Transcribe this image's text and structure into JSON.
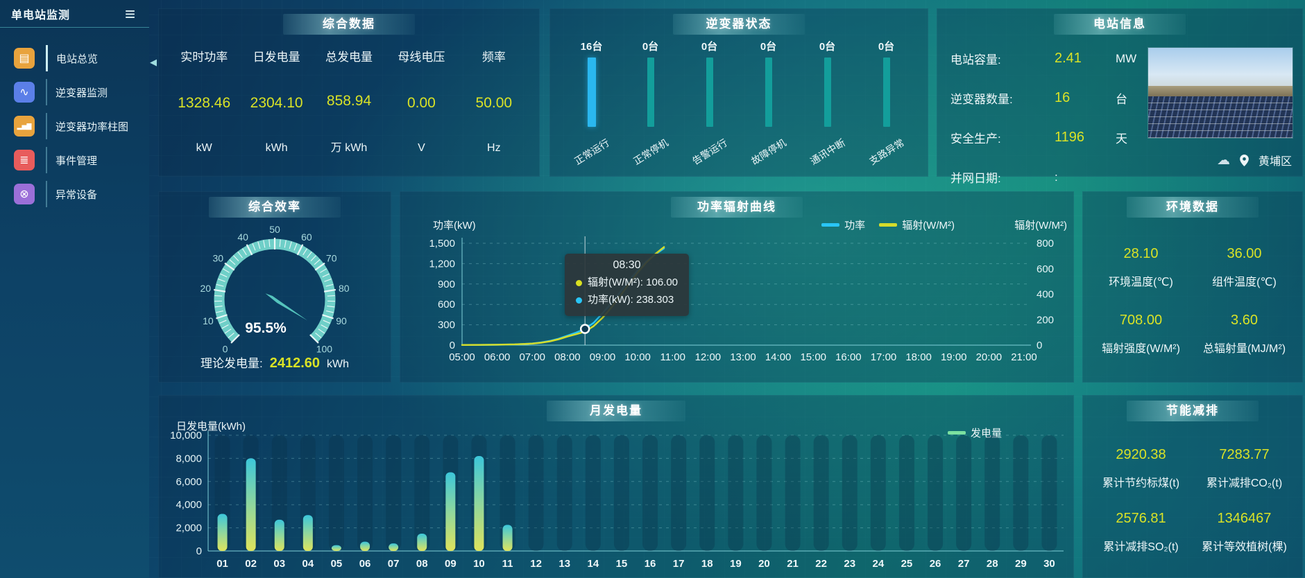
{
  "app": {
    "title": "单电站监测"
  },
  "theme": {
    "value_color": "#d9e226",
    "power_line_color": "#29c5f6",
    "radiation_line_color": "#d4dc2b",
    "inverter_bar_highlight": "#2ab7ef",
    "inverter_bar_normal": "#139e9b",
    "gauge_color": "#6fcfc8"
  },
  "sidebar": {
    "items": [
      {
        "label": "电站总览",
        "color": "#e8a33d",
        "active": true
      },
      {
        "label": "逆变器监测",
        "color": "#5b7fe8",
        "active": false
      },
      {
        "label": "逆变器功率柱图",
        "color": "#e8a33d",
        "active": false
      },
      {
        "label": "事件管理",
        "color": "#e85c5c",
        "active": false
      },
      {
        "label": "异常设备",
        "color": "#9b6fd8",
        "active": false
      }
    ]
  },
  "summary": {
    "title": "综合数据",
    "metrics": [
      {
        "label": "实时功率",
        "value": "1328.46",
        "unit": "kW"
      },
      {
        "label": "日发电量",
        "value": "2304.10",
        "unit": "kWh"
      },
      {
        "label": "总发电量",
        "value": "858.94",
        "unit": "万 kWh"
      },
      {
        "label": "母线电压",
        "value": "0.00",
        "unit": "V"
      },
      {
        "label": "频率",
        "value": "50.00",
        "unit": "Hz"
      }
    ]
  },
  "inverter": {
    "title": "逆变器状态",
    "bars": [
      {
        "count": "16台",
        "label": "正常运行",
        "color": "#2ab7ef",
        "highlight": true
      },
      {
        "count": "0台",
        "label": "正常停机",
        "color": "#139e9b",
        "highlight": false
      },
      {
        "count": "0台",
        "label": "告警运行",
        "color": "#139e9b",
        "highlight": false
      },
      {
        "count": "0台",
        "label": "故障停机",
        "color": "#139e9b",
        "highlight": false
      },
      {
        "count": "0台",
        "label": "通讯中断",
        "color": "#139e9b",
        "highlight": false
      },
      {
        "count": "0台",
        "label": "支路异常",
        "color": "#139e9b",
        "highlight": false
      }
    ]
  },
  "station": {
    "title": "电站信息",
    "rows": [
      {
        "label": "电站容量:",
        "value": "2.41",
        "unit": "MW"
      },
      {
        "label": "逆变器数量:",
        "value": "16",
        "unit": "台"
      },
      {
        "label": "安全生产:",
        "value": "1196",
        "unit": "天"
      },
      {
        "label": "并网日期: ",
        "value": ":",
        "unit": ""
      }
    ],
    "location": "黄埔区"
  },
  "efficiency": {
    "title": "综合效率",
    "value_label": "95.5%",
    "bottom": {
      "label": "理论发电量:",
      "value": "2412.60",
      "unit": "kWh"
    }
  },
  "environment": {
    "title": "环境数据",
    "items": [
      {
        "value": "28.10",
        "label": "环境温度(℃)"
      },
      {
        "value": "36.00",
        "label": "组件温度(℃)"
      },
      {
        "value": "708.00",
        "label": "辐射强度(W/M²)"
      },
      {
        "value": "3.60",
        "label": "总辐射量(MJ/M²)"
      }
    ]
  },
  "saving": {
    "title": "节能减排",
    "items": [
      {
        "value": "2920.38",
        "label": "累计节约标煤(t)"
      },
      {
        "value": "7283.77",
        "label": "累计减排CO₂(t)"
      },
      {
        "value": "2576.81",
        "label": "累计减排SO₂(t)"
      },
      {
        "value": "1346467",
        "label": "累计等效植树(棵)"
      }
    ]
  },
  "chart_data": [
    {
      "id": "power_radiation_curve",
      "type": "line",
      "title": "功率辐射曲线",
      "ylabel_left": "功率(kW)",
      "ylabel_right": "辐射(W/M²)",
      "ylim_left": [
        0,
        1500
      ],
      "ylim_right": [
        0,
        800
      ],
      "yticks_left": [
        "0",
        "300",
        "600",
        "900",
        "1,200",
        "1,500"
      ],
      "yticks_right": [
        "0",
        "200",
        "400",
        "600",
        "800"
      ],
      "xticks": [
        "05:00",
        "06:00",
        "07:00",
        "08:00",
        "09:00",
        "10:00",
        "11:00",
        "12:00",
        "13:00",
        "14:00",
        "15:00",
        "16:00",
        "17:00",
        "18:00",
        "19:00",
        "20:00",
        "21:00"
      ],
      "x_range_hours": [
        5,
        21
      ],
      "grid": "dashed",
      "legend_position": "top-right",
      "series": [
        {
          "name": "功率",
          "axis": "left",
          "color": "#29c5f6",
          "points": [
            [
              5,
              2
            ],
            [
              5.5,
              3
            ],
            [
              6,
              5
            ],
            [
              6.5,
              10
            ],
            [
              7,
              25
            ],
            [
              7.25,
              40
            ],
            [
              7.5,
              62
            ],
            [
              7.75,
              95
            ],
            [
              8,
              140
            ],
            [
              8.25,
              185
            ],
            [
              8.5,
              238.3
            ],
            [
              8.75,
              330
            ],
            [
              9,
              470
            ],
            [
              9.25,
              620
            ],
            [
              9.5,
              780
            ],
            [
              9.75,
              950
            ],
            [
              10,
              1100
            ],
            [
              10.25,
              1235
            ],
            [
              10.5,
              1335
            ],
            [
              10.75,
              1425
            ]
          ]
        },
        {
          "name": "辐射(W/M²)",
          "axis": "right",
          "color": "#d4dc2b",
          "points": [
            [
              5,
              1
            ],
            [
              5.5,
              2
            ],
            [
              6,
              3
            ],
            [
              6.5,
              6
            ],
            [
              7,
              12
            ],
            [
              7.25,
              19
            ],
            [
              7.5,
              30
            ],
            [
              7.75,
              46
            ],
            [
              8,
              68
            ],
            [
              8.25,
              86
            ],
            [
              8.5,
              106
            ],
            [
              8.75,
              150
            ],
            [
              9,
              215
            ],
            [
              9.25,
              295
            ],
            [
              9.5,
              385
            ],
            [
              9.75,
              480
            ],
            [
              10,
              570
            ],
            [
              10.25,
              650
            ],
            [
              10.5,
              715
            ],
            [
              10.75,
              770
            ]
          ]
        }
      ],
      "tooltip": {
        "time": "08:30",
        "rows": [
          {
            "dot": "#d9e021",
            "text": "辐射(W/M²): 106.00"
          },
          {
            "dot": "#29c5f6",
            "text": "功率(kW): 238.303"
          }
        ],
        "marker_x_hour": 8.5,
        "marker_power": 238.303
      }
    },
    {
      "id": "monthly_generation",
      "type": "bar",
      "title": "月发电量",
      "ylabel": "日发电量(kWh)",
      "ylim": [
        0,
        10000
      ],
      "yticks": [
        "0",
        "2,000",
        "4,000",
        "6,000",
        "8,000",
        "10,000"
      ],
      "categories": [
        "01",
        "02",
        "03",
        "04",
        "05",
        "06",
        "07",
        "08",
        "09",
        "10",
        "11",
        "12",
        "13",
        "14",
        "15",
        "16",
        "17",
        "18",
        "19",
        "20",
        "21",
        "22",
        "23",
        "24",
        "25",
        "26",
        "27",
        "28",
        "29",
        "30"
      ],
      "values": [
        3200,
        8000,
        2700,
        3100,
        500,
        800,
        650,
        1500,
        6800,
        8200,
        2250,
        0,
        0,
        0,
        0,
        0,
        0,
        0,
        0,
        0,
        0,
        0,
        0,
        0,
        0,
        0,
        0,
        0,
        0,
        0
      ],
      "legend": [
        {
          "name": "发电量",
          "color": "#7ce0a0"
        }
      ],
      "bar_gradient": [
        "#dfe35c",
        "#8fd79e",
        "#3cc6da"
      ],
      "grid": "dashed"
    },
    {
      "id": "inverter_status",
      "type": "bar",
      "title": "逆变器状态",
      "categories": [
        "正常运行",
        "正常停机",
        "告警运行",
        "故障停机",
        "通讯中断",
        "支路异常"
      ],
      "values": [
        16,
        0,
        0,
        0,
        0,
        0
      ],
      "unit": "台"
    },
    {
      "id": "efficiency_gauge",
      "type": "gauge",
      "title": "综合效率",
      "min": 0,
      "max": 100,
      "value": 95.5,
      "label": "95.5%"
    }
  ]
}
